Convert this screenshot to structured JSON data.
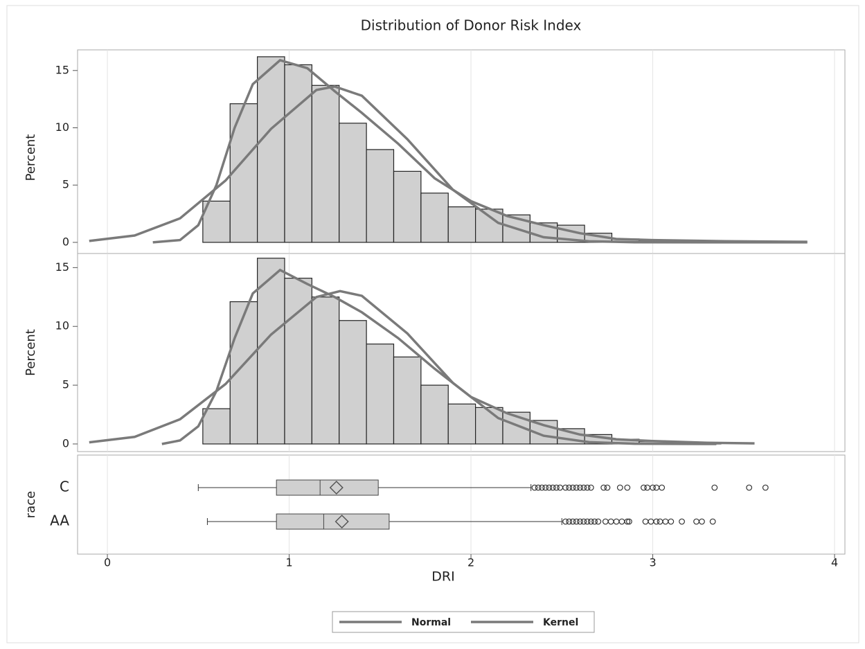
{
  "chart_data": [
    {
      "type": "histogram",
      "title": "Distribution of Donor Risk Index",
      "ylabel": "Percent",
      "xlim": [
        -0.164,
        4.057
      ],
      "ylim": [
        -2.0,
        16.8
      ],
      "yticks": [
        0,
        5,
        10,
        15
      ],
      "bar_color": "#d0d0d0",
      "bins": [
        0.525,
        0.675,
        0.825,
        0.975,
        1.125,
        1.275,
        1.425,
        1.575,
        1.725,
        1.875,
        2.025,
        2.175,
        2.325,
        2.475,
        2.625,
        2.775,
        2.925,
        3.075,
        3.225,
        3.375,
        3.525,
        3.675
      ],
      "values": [
        3.6,
        12.1,
        16.2,
        15.5,
        13.7,
        10.4,
        8.1,
        6.2,
        4.3,
        3.1,
        2.9,
        2.4,
        1.7,
        1.5,
        0.8,
        0.3,
        0.1,
        0.2,
        0.1,
        0.1,
        0.1
      ],
      "series": [
        {
          "name": "Normal",
          "color": "#7a7a7a",
          "x": [
            -0.1,
            0.15,
            0.4,
            0.65,
            0.9,
            1.15,
            1.25,
            1.4,
            1.65,
            1.9,
            2.15,
            2.4,
            2.65,
            2.9,
            3.4,
            3.85
          ],
          "values": [
            0.12,
            0.6,
            2.1,
            5.4,
            9.9,
            13.3,
            13.6,
            12.8,
            9.0,
            4.6,
            1.7,
            0.45,
            0.09,
            0.01,
            0,
            0
          ]
        },
        {
          "name": "Kernel",
          "color": "#7a7a7a",
          "x": [
            0.25,
            0.4,
            0.5,
            0.6,
            0.7,
            0.8,
            0.95,
            1.1,
            1.25,
            1.4,
            1.6,
            1.8,
            2.0,
            2.2,
            2.4,
            2.6,
            2.8,
            3.0,
            3.4,
            3.85
          ],
          "values": [
            0,
            0.2,
            1.5,
            5,
            10,
            13.8,
            15.9,
            15.2,
            13.2,
            11.3,
            8.6,
            5.6,
            3.6,
            2.3,
            1.5,
            0.8,
            0.3,
            0.2,
            0.1,
            0.05
          ]
        }
      ]
    },
    {
      "type": "histogram",
      "ylabel": "Percent",
      "xlim": [
        -0.164,
        4.057
      ],
      "ylim": [
        -0.65,
        16.2
      ],
      "yticks": [
        0,
        5,
        10,
        15
      ],
      "bar_color": "#d0d0d0",
      "bins": [
        0.525,
        0.675,
        0.825,
        0.975,
        1.125,
        1.275,
        1.425,
        1.575,
        1.725,
        1.875,
        2.025,
        2.175,
        2.325,
        2.475,
        2.625,
        2.775,
        2.925,
        3.075,
        3.225,
        3.375
      ],
      "values": [
        3.0,
        12.1,
        15.8,
        14.1,
        12.5,
        10.5,
        8.5,
        7.4,
        5.0,
        3.4,
        3.1,
        2.7,
        2.0,
        1.3,
        0.8,
        0.4,
        0.2,
        0.1,
        0.1
      ],
      "series": [
        {
          "name": "Normal",
          "color": "#7a7a7a",
          "x": [
            -0.1,
            0.15,
            0.4,
            0.65,
            0.9,
            1.15,
            1.28,
            1.4,
            1.65,
            1.9,
            2.15,
            2.4,
            2.65,
            2.9,
            3.35
          ],
          "values": [
            0.14,
            0.6,
            2.1,
            5.1,
            9.3,
            12.5,
            13.0,
            12.6,
            9.4,
            5.2,
            2.2,
            0.7,
            0.15,
            0.02,
            0
          ]
        },
        {
          "name": "Kernel",
          "color": "#7a7a7a",
          "x": [
            0.3,
            0.4,
            0.5,
            0.6,
            0.7,
            0.8,
            0.95,
            1.1,
            1.25,
            1.4,
            1.6,
            1.8,
            2.0,
            2.2,
            2.4,
            2.6,
            2.8,
            3.0,
            3.3,
            3.56
          ],
          "values": [
            0,
            0.3,
            1.5,
            4.5,
            9,
            12.8,
            14.8,
            13.6,
            12.5,
            11.2,
            9.0,
            6.4,
            4.0,
            2.6,
            1.6,
            0.8,
            0.4,
            0.25,
            0.1,
            0.05
          ]
        }
      ]
    },
    {
      "type": "box",
      "ylabel": "race",
      "xlabel": "DRI",
      "xlim": [
        -0.164,
        4.057
      ],
      "xticks": [
        0,
        1,
        2,
        3,
        4
      ],
      "grid": true,
      "color": "#d0d0d0",
      "categories": [
        "C",
        "AA"
      ],
      "min": [
        0.5,
        0.55
      ],
      "q1": [
        0.93,
        0.93
      ],
      "median": [
        1.17,
        1.19
      ],
      "q3": [
        1.49,
        1.55
      ],
      "max": [
        2.33,
        2.5
      ],
      "mean": [
        1.26,
        1.29
      ],
      "outliers": [
        [
          2.35,
          2.37,
          2.39,
          2.41,
          2.43,
          2.45,
          2.47,
          2.49,
          2.52,
          2.54,
          2.56,
          2.58,
          2.6,
          2.62,
          2.64,
          2.66,
          2.73,
          2.75,
          2.82,
          2.86,
          2.95,
          2.97,
          3.0,
          3.02,
          3.05,
          3.34,
          3.53,
          3.62
        ],
        [
          2.52,
          2.54,
          2.56,
          2.58,
          2.6,
          2.62,
          2.64,
          2.66,
          2.68,
          2.7,
          2.74,
          2.77,
          2.8,
          2.83,
          2.86,
          2.87,
          2.96,
          2.99,
          3.02,
          3.04,
          3.07,
          3.1,
          3.16,
          3.24,
          3.27,
          3.33
        ]
      ]
    }
  ]
}
